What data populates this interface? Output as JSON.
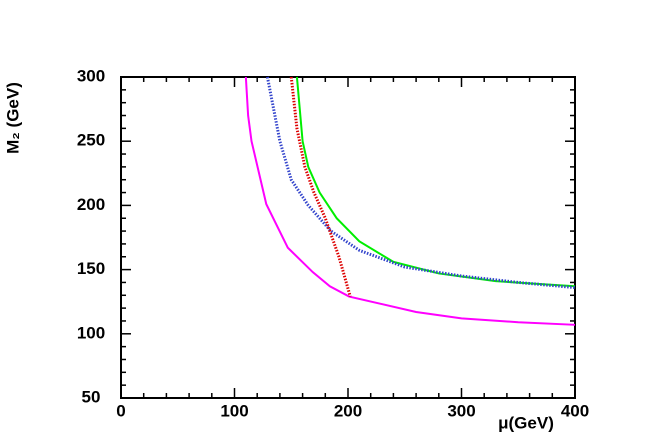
{
  "chart_data": {
    "type": "line",
    "xlabel": "μ(GeV)",
    "ylabel": "M₂ (GeV)",
    "xlim": [
      0,
      400
    ],
    "xticks": [
      0,
      100,
      200,
      300,
      400
    ],
    "xminorticks": [
      20,
      40,
      60,
      80,
      120,
      140,
      160,
      180,
      220,
      240,
      260,
      280,
      320,
      340,
      360,
      380
    ],
    "ylim": [
      50,
      300
    ],
    "yticks": [
      50,
      100,
      150,
      200,
      250,
      300
    ],
    "yminorticks": [
      60,
      70,
      80,
      90,
      110,
      120,
      130,
      140,
      160,
      170,
      180,
      190,
      210,
      220,
      230,
      240,
      260,
      270,
      280,
      290
    ],
    "series": [
      {
        "color": "#ff00ff",
        "style": "solid",
        "x": [
          110,
          112,
          115,
          128,
          147,
          169,
          184,
          201,
          260,
          300,
          350,
          400
        ],
        "values": [
          300,
          270,
          250,
          201,
          167,
          148,
          137,
          129,
          117,
          112,
          109,
          107
        ]
      },
      {
        "color": "#00ee00",
        "style": "solid",
        "x": [
          155,
          160,
          165,
          175,
          190,
          210,
          240,
          280,
          330,
          400
        ],
        "values": [
          300,
          250,
          230,
          210,
          190,
          172,
          156,
          147,
          141,
          137
        ]
      },
      {
        "color": "#3344cc",
        "style": "dotted",
        "x": [
          129,
          140,
          150,
          165,
          185,
          210,
          250,
          300,
          350,
          400
        ],
        "values": [
          300,
          250,
          220,
          200,
          180,
          165,
          152,
          145,
          140,
          136
        ]
      },
      {
        "color": "#dd0000",
        "style": "dotted",
        "x": [
          150,
          155,
          162,
          170,
          180,
          192,
          202
        ],
        "values": [
          300,
          260,
          230,
          210,
          190,
          160,
          129
        ]
      }
    ]
  }
}
